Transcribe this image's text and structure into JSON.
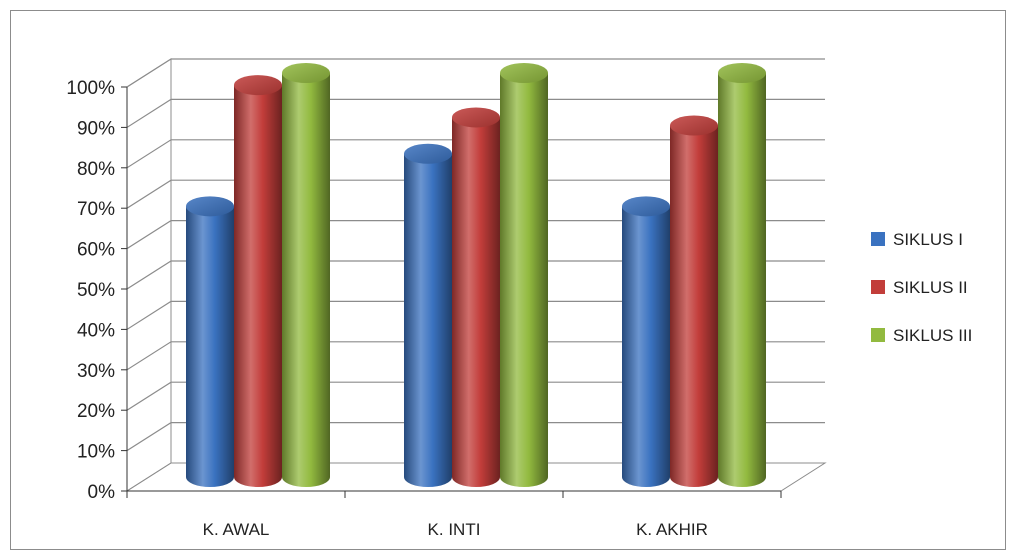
{
  "chart_data": {
    "type": "bar",
    "style": "3d-cylinder",
    "categories": [
      "K. AWAL",
      "K. INTI",
      "K. AKHIR"
    ],
    "series": [
      {
        "name": "SIKLUS I",
        "values": [
          67,
          80,
          67
        ],
        "color": "#3a72c0"
      },
      {
        "name": "SIKLUS II",
        "values": [
          97,
          89,
          87
        ],
        "color": "#c23d3a"
      },
      {
        "name": "SIKLUS III",
        "values": [
          100,
          100,
          100
        ],
        "color": "#92ba3f"
      }
    ],
    "y_ticks": [
      "0%",
      "10%",
      "20%",
      "30%",
      "40%",
      "50%",
      "60%",
      "70%",
      "80%",
      "90%",
      "100%"
    ],
    "ylim": [
      0,
      100
    ],
    "grid": true,
    "legend_position": "right"
  }
}
